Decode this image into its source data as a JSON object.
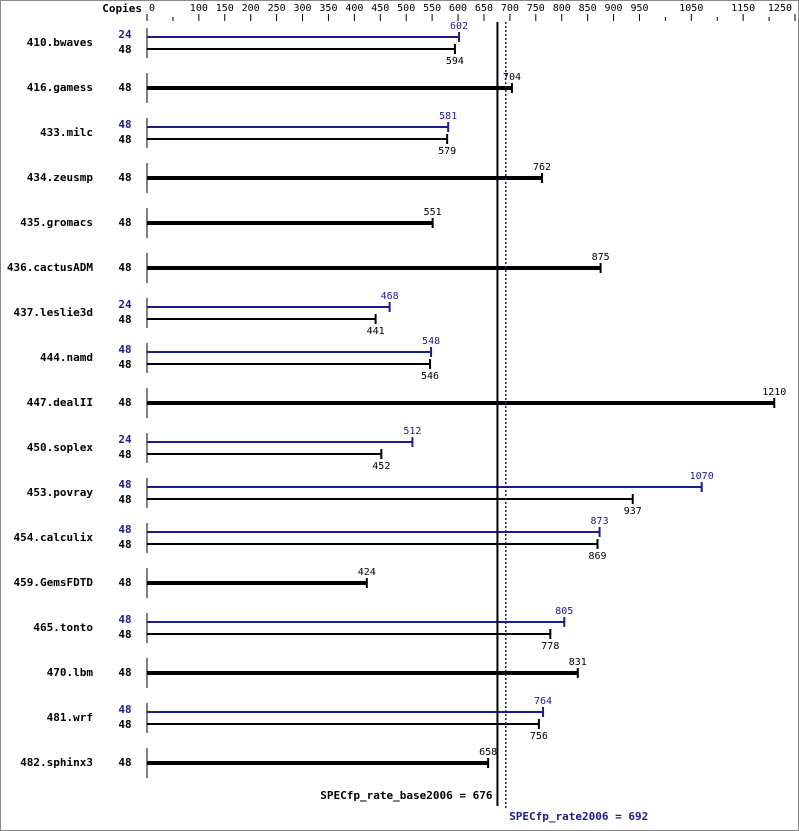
{
  "chart_data": {
    "type": "bar",
    "x_label": "Copies",
    "xlim": [
      0,
      1250
    ],
    "xticks": [
      0,
      100,
      150,
      200,
      250,
      300,
      350,
      400,
      450,
      500,
      550,
      600,
      650,
      700,
      750,
      800,
      850,
      900,
      950,
      1050,
      1150,
      1250
    ],
    "minor_xticks": [
      50,
      1000,
      1100,
      1200
    ],
    "peak_color": "#1c1c8c",
    "base_color": "#000000",
    "benchmarks": [
      {
        "name": "410.bwaves",
        "peak": {
          "copies": 24,
          "value": 602
        },
        "base": {
          "copies": 48,
          "value": 594
        }
      },
      {
        "name": "416.gamess",
        "copies": 48,
        "value": 704
      },
      {
        "name": "433.milc",
        "peak": {
          "copies": 48,
          "value": 581
        },
        "base": {
          "copies": 48,
          "value": 579
        }
      },
      {
        "name": "434.zeusmp",
        "copies": 48,
        "value": 762
      },
      {
        "name": "435.gromacs",
        "copies": 48,
        "value": 551
      },
      {
        "name": "436.cactusADM",
        "copies": 48,
        "value": 875
      },
      {
        "name": "437.leslie3d",
        "peak": {
          "copies": 24,
          "value": 468
        },
        "base": {
          "copies": 48,
          "value": 441
        }
      },
      {
        "name": "444.namd",
        "peak": {
          "copies": 48,
          "value": 548
        },
        "base": {
          "copies": 48,
          "value": 546
        }
      },
      {
        "name": "447.dealII",
        "copies": 48,
        "value": 1210
      },
      {
        "name": "450.soplex",
        "peak": {
          "copies": 24,
          "value": 512
        },
        "base": {
          "copies": 48,
          "value": 452
        }
      },
      {
        "name": "453.povray",
        "peak": {
          "copies": 48,
          "value": 1070
        },
        "base": {
          "copies": 48,
          "value": 937
        }
      },
      {
        "name": "454.calculix",
        "peak": {
          "copies": 48,
          "value": 873
        },
        "base": {
          "copies": 48,
          "value": 869
        }
      },
      {
        "name": "459.GemsFDTD",
        "copies": 48,
        "value": 424
      },
      {
        "name": "465.tonto",
        "peak": {
          "copies": 48,
          "value": 805
        },
        "base": {
          "copies": 48,
          "value": 778
        }
      },
      {
        "name": "470.lbm",
        "copies": 48,
        "value": 831
      },
      {
        "name": "481.wrf",
        "peak": {
          "copies": 48,
          "value": 764
        },
        "base": {
          "copies": 48,
          "value": 756
        }
      },
      {
        "name": "482.sphinx3",
        "copies": 48,
        "value": 658
      }
    ],
    "base_line": {
      "label": "SPECfp_rate_base2006 = 676",
      "value": 676
    },
    "peak_line": {
      "label": "SPECfp_rate2006 = 692",
      "value": 692
    }
  }
}
